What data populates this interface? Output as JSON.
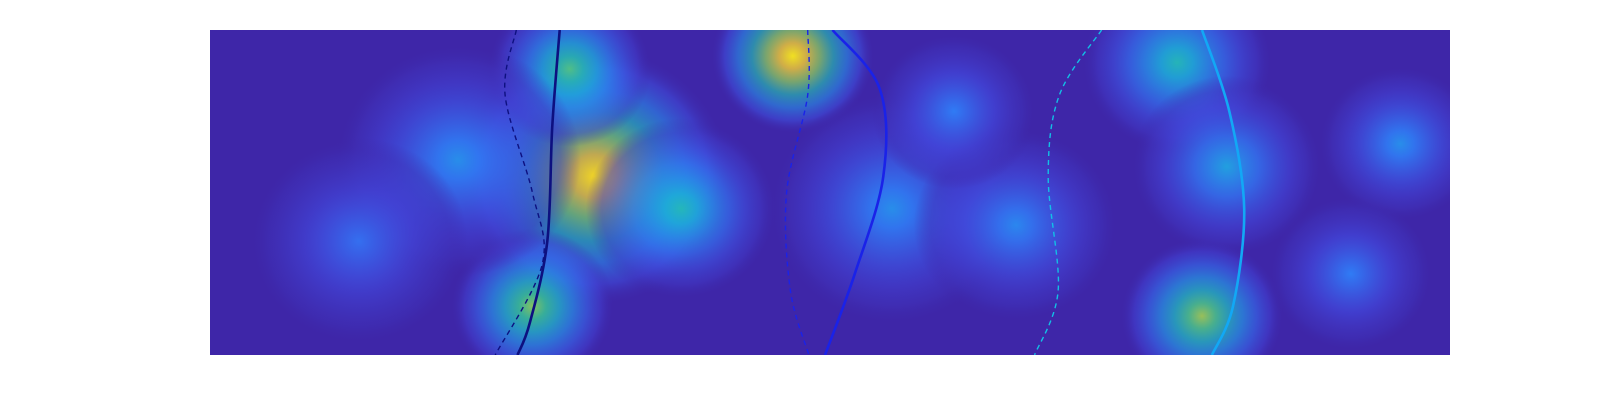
{
  "chart_data": {
    "type": "heatmap",
    "title": "",
    "xlabel": "",
    "ylabel": "",
    "axes_visible": false,
    "grid": false,
    "legend": "none",
    "colormap": "parula",
    "colormap_stops": [
      "#3e26a8",
      "#4249e0",
      "#2f80f9",
      "#1cb0dc",
      "#29c2a0",
      "#8dca5b",
      "#e2bc3e",
      "#fadd1e",
      "#f9fb15"
    ],
    "density_peaks": [
      {
        "x": 0.0,
        "y": 0.0,
        "intensity": 0.0
      }
    ],
    "hotspots": [
      {
        "x": 0.31,
        "y": 0.45,
        "r": 0.2,
        "intensity": 0.88
      },
      {
        "x": 0.29,
        "y": 0.12,
        "r": 0.12,
        "intensity": 0.55
      },
      {
        "x": 0.26,
        "y": 0.85,
        "r": 0.12,
        "intensity": 0.62
      },
      {
        "x": 0.47,
        "y": 0.08,
        "r": 0.12,
        "intensity": 0.93
      },
      {
        "x": 0.2,
        "y": 0.4,
        "r": 0.18,
        "intensity": 0.3
      },
      {
        "x": 0.38,
        "y": 0.55,
        "r": 0.14,
        "intensity": 0.45
      },
      {
        "x": 0.55,
        "y": 0.55,
        "r": 0.18,
        "intensity": 0.3
      },
      {
        "x": 0.65,
        "y": 0.6,
        "r": 0.15,
        "intensity": 0.28
      },
      {
        "x": 0.78,
        "y": 0.1,
        "r": 0.14,
        "intensity": 0.45
      },
      {
        "x": 0.82,
        "y": 0.42,
        "r": 0.14,
        "intensity": 0.35
      },
      {
        "x": 0.8,
        "y": 0.88,
        "r": 0.12,
        "intensity": 0.65
      },
      {
        "x": 0.96,
        "y": 0.35,
        "r": 0.12,
        "intensity": 0.3
      },
      {
        "x": 0.92,
        "y": 0.75,
        "r": 0.12,
        "intensity": 0.25
      },
      {
        "x": 0.12,
        "y": 0.65,
        "r": 0.16,
        "intensity": 0.22
      },
      {
        "x": 0.6,
        "y": 0.25,
        "r": 0.12,
        "intensity": 0.25
      }
    ],
    "series": [
      {
        "color": "#0d1080",
        "style": "solid",
        "points": [
          [
            0.282,
            0.0
          ],
          [
            0.276,
            0.3
          ],
          [
            0.272,
            0.65
          ],
          [
            0.258,
            0.9
          ],
          [
            0.248,
            1.0
          ]
        ]
      },
      {
        "color": "#0d1080",
        "style": "dashed",
        "points": [
          [
            0.247,
            0.0
          ],
          [
            0.238,
            0.2
          ],
          [
            0.26,
            0.5
          ],
          [
            0.268,
            0.72
          ],
          [
            0.23,
            1.0
          ]
        ]
      },
      {
        "color": "#1a22e8",
        "style": "solid",
        "points": [
          [
            0.502,
            0.0
          ],
          [
            0.54,
            0.18
          ],
          [
            0.543,
            0.45
          ],
          [
            0.52,
            0.75
          ],
          [
            0.496,
            1.0
          ]
        ]
      },
      {
        "color": "#1a22e8",
        "style": "dashed",
        "points": [
          [
            0.482,
            0.0
          ],
          [
            0.482,
            0.2
          ],
          [
            0.465,
            0.5
          ],
          [
            0.468,
            0.8
          ],
          [
            0.483,
            1.0
          ]
        ]
      },
      {
        "color": "#12a8f5",
        "style": "solid",
        "points": [
          [
            0.8,
            0.0
          ],
          [
            0.822,
            0.25
          ],
          [
            0.834,
            0.55
          ],
          [
            0.825,
            0.85
          ],
          [
            0.808,
            1.0
          ]
        ]
      },
      {
        "color": "#12c0e6",
        "style": "dashed",
        "points": [
          [
            0.719,
            0.0
          ],
          [
            0.685,
            0.2
          ],
          [
            0.676,
            0.45
          ],
          [
            0.684,
            0.8
          ],
          [
            0.665,
            1.0
          ]
        ]
      }
    ]
  }
}
